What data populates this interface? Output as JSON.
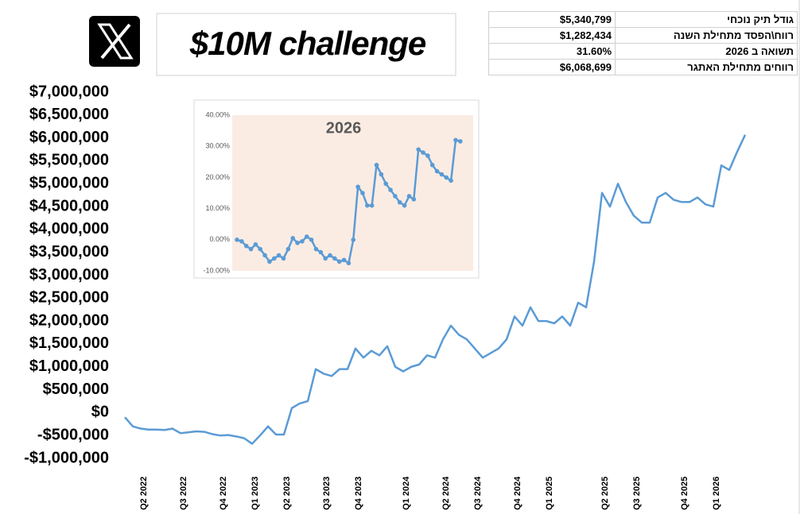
{
  "header": {
    "title": "$10M challenge"
  },
  "summary_table": {
    "rows": [
      [
        "גודל תיק נוכחי",
        "$5,340,799"
      ],
      [
        "רווח\\הפסד מתחילת השנה",
        "$1,282,434"
      ],
      [
        "תשואה ב 2026",
        "31.60%"
      ],
      [
        "רווחים מתחילת האתגר",
        "$6,068,699"
      ]
    ]
  },
  "chart_data": [
    {
      "type": "line",
      "color": "#5b9bd5",
      "categories": [
        null,
        null,
        "Q2 2022",
        null,
        null,
        null,
        null,
        "Q3 2022",
        null,
        null,
        null,
        null,
        "Q4 2022",
        null,
        null,
        null,
        "Q1 2023",
        null,
        null,
        null,
        "Q2 2023",
        null,
        null,
        null,
        null,
        "Q3 2023",
        null,
        null,
        null,
        "Q4 2023",
        null,
        null,
        null,
        null,
        null,
        "Q1 2024",
        null,
        null,
        null,
        null,
        "Q2 2024",
        null,
        null,
        null,
        "Q3 2024",
        null,
        null,
        null,
        null,
        "Q4 2024",
        null,
        null,
        null,
        "Q1 2025",
        null,
        null,
        null,
        null,
        null,
        null,
        "Q2 2025",
        null,
        null,
        null,
        "Q3 2025",
        null,
        null,
        null,
        null,
        null,
        "Q4 2025",
        null,
        null,
        null,
        "Q1 2026",
        null,
        null,
        null,
        null
      ],
      "values": [
        -100000,
        -300000,
        -350000,
        -370000,
        -370000,
        -380000,
        -350000,
        -450000,
        -430000,
        -410000,
        -420000,
        -470000,
        -500000,
        -490000,
        -520000,
        -560000,
        -680000,
        -500000,
        -300000,
        -480000,
        -480000,
        100000,
        200000,
        250000,
        950000,
        850000,
        800000,
        950000,
        950000,
        1400000,
        1200000,
        1350000,
        1250000,
        1450000,
        1000000,
        900000,
        1000000,
        1050000,
        1250000,
        1200000,
        1600000,
        1900000,
        1700000,
        1600000,
        1400000,
        1200000,
        1300000,
        1400000,
        1600000,
        2100000,
        1900000,
        2300000,
        2000000,
        2000000,
        1950000,
        2100000,
        1900000,
        2400000,
        2300000,
        3300000,
        4800000,
        4500000,
        5000000,
        4600000,
        4300000,
        4150000,
        4150000,
        4700000,
        4800000,
        4650000,
        4600000,
        4600000,
        4700000,
        4550000,
        4500000,
        5400000,
        5300000,
        5700000,
        6068699
      ],
      "ylim": [
        -1000000,
        7000000
      ],
      "yticks": [
        {
          "value": -1000000,
          "label": "-$1,000,000"
        },
        {
          "value": -500000,
          "label": "-$500,000"
        },
        {
          "value": 0,
          "label": "$0"
        },
        {
          "value": 500000,
          "label": "$500,000"
        },
        {
          "value": 1000000,
          "label": "$1,000,000"
        },
        {
          "value": 1500000,
          "label": "$1,500,000"
        },
        {
          "value": 2000000,
          "label": "$2,000,000"
        },
        {
          "value": 2500000,
          "label": "$2,500,000"
        },
        {
          "value": 3000000,
          "label": "$3,000,000"
        },
        {
          "value": 3500000,
          "label": "$3,500,000"
        },
        {
          "value": 4000000,
          "label": "$4,000,000"
        },
        {
          "value": 4500000,
          "label": "$4,500,000"
        },
        {
          "value": 5000000,
          "label": "$5,000,000"
        },
        {
          "value": 5500000,
          "label": "$5,500,000"
        },
        {
          "value": 6000000,
          "label": "$6,000,000"
        },
        {
          "value": 6500000,
          "label": "$6,500,000"
        },
        {
          "value": 7000000,
          "label": "$7,000,000"
        }
      ]
    },
    {
      "type": "line",
      "title": "2026",
      "color": "#5b9bd5",
      "markers": true,
      "values": [
        0,
        -0.5,
        -2,
        -3,
        -1.5,
        -3,
        -5,
        -7,
        -6,
        -5,
        -6,
        -3,
        0.5,
        -1,
        -0.5,
        1,
        0,
        -3,
        -4,
        -6,
        -5,
        -6,
        -7,
        -6.5,
        -7.5,
        0,
        17,
        15,
        11,
        11,
        24,
        21,
        18,
        16,
        14,
        12,
        11,
        14,
        13,
        29,
        28,
        27,
        24,
        22,
        21,
        20,
        19,
        32,
        31.6
      ],
      "ylim": [
        -10,
        40
      ],
      "yticks": [
        {
          "value": -10,
          "label": "-10.00%"
        },
        {
          "value": 0,
          "label": "0.00%"
        },
        {
          "value": 10,
          "label": "10.00%"
        },
        {
          "value": 20,
          "label": "20.00%"
        },
        {
          "value": 30,
          "label": "30.00%"
        },
        {
          "value": 40,
          "label": "40.00%"
        }
      ]
    }
  ]
}
